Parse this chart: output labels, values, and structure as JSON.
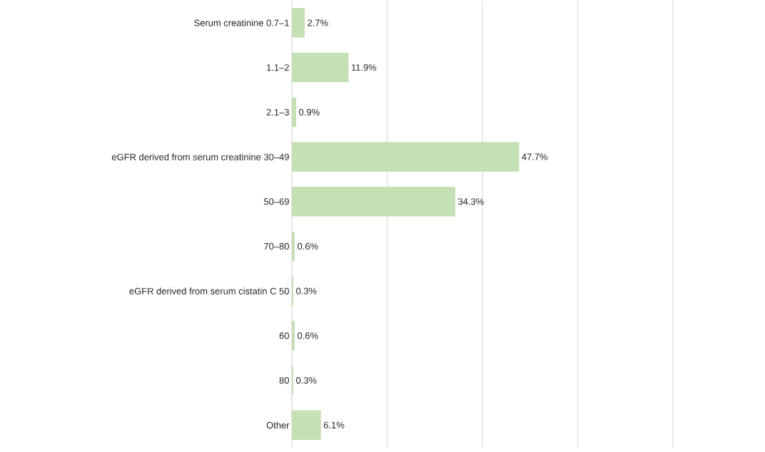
{
  "chart_data": {
    "type": "bar",
    "orientation": "horizontal",
    "categories": [
      "Serum creatinine 0.7–1",
      "1.1–2",
      "2.1–3",
      "eGFR derived from serum creatinine 30–49",
      "50–69",
      "70–80",
      "eGFR derived from serum cistatin C  50",
      "60",
      "80",
      "Other"
    ],
    "values": [
      2.7,
      11.9,
      0.9,
      47.7,
      34.3,
      0.6,
      0.3,
      0.6,
      0.3,
      6.1
    ],
    "value_labels": [
      "2.7%",
      "11.9%",
      "0.9%",
      "47.7%",
      "34.3%",
      "0.6%",
      "0.3%",
      "0.6%",
      "0.3%",
      "6.1%"
    ],
    "color": "#c5e0b4",
    "xlim": [
      0,
      80
    ],
    "xticks": [
      {
        "value": 0,
        "label": null
      },
      {
        "value": 20,
        "label": null
      },
      {
        "value": 40,
        "label": null
      },
      {
        "value": 60,
        "label": null
      },
      {
        "value": 80,
        "label": null
      }
    ],
    "grid": "x",
    "tick_labels": "y"
  }
}
